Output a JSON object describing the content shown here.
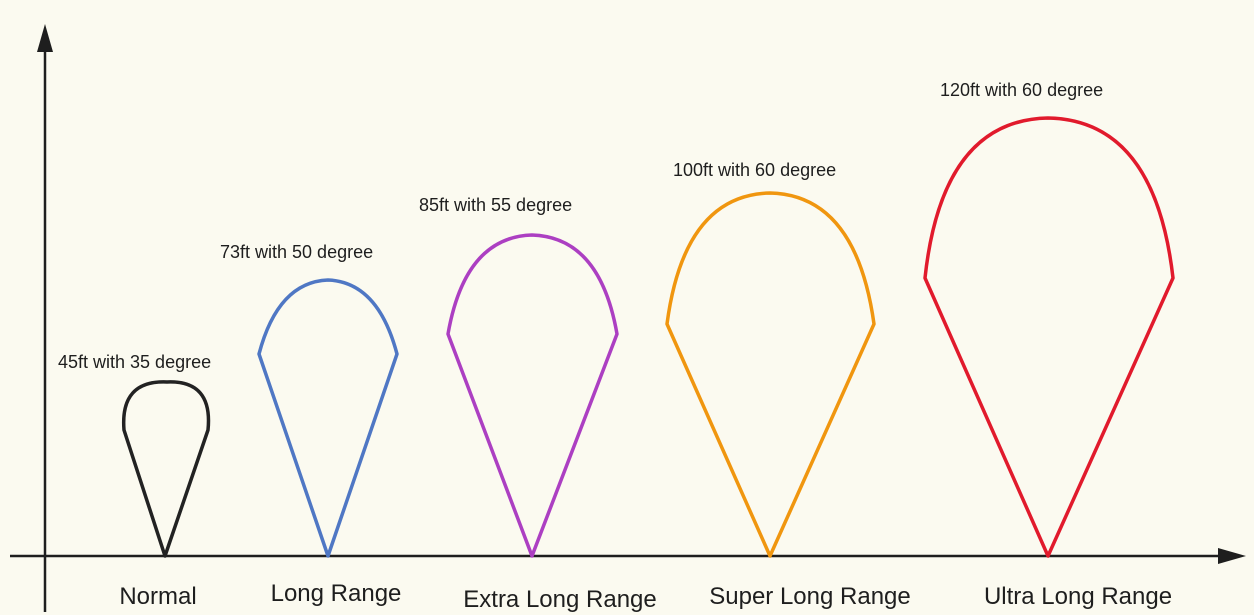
{
  "beams": [
    {
      "category": "Normal",
      "label": "45ft with 35 degree",
      "color": "#222222"
    },
    {
      "category": "Long Range",
      "label": "73ft with 50 degree",
      "color": "#4f77c4"
    },
    {
      "category": "Extra Long Range",
      "label": "85ft with 55 degree",
      "color": "#ac3fc2"
    },
    {
      "category": "Super Long Range",
      "label": "100ft with 60 degree",
      "color": "#f0960f"
    },
    {
      "category": "Ultra Long Range",
      "label": "120ft with 60 degree",
      "color": "#e11a2c"
    }
  ]
}
